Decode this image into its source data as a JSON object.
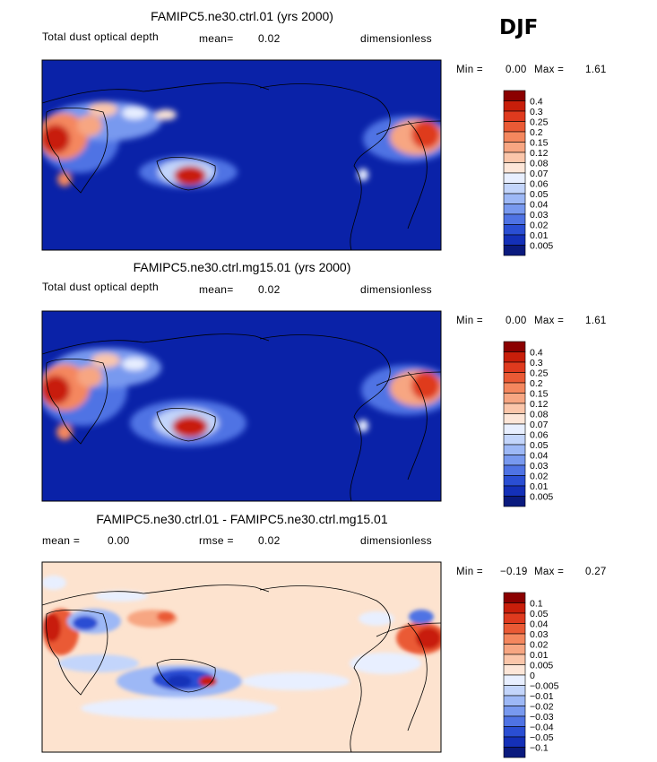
{
  "season": "DJF",
  "colors": {
    "ocean": "#0a22a8",
    "diff_background": "#fde3cf",
    "coast": "#000000"
  },
  "chart_data": [
    {
      "type": "heatmap",
      "title": "FAMIPC5.ne30.ctrl.01 (yrs 2000)",
      "variable": "Total dust optical depth",
      "mean_label": "mean=",
      "mean_value": "0.02",
      "units": "dimensionless",
      "min_label": "Min =",
      "min_value": "0.00",
      "max_label": "Max =",
      "max_value": "1.61",
      "colorbar": {
        "levels": [
          "0.4",
          "0.3",
          "0.25",
          "0.2",
          "0.15",
          "0.12",
          "0.08",
          "0.07",
          "0.06",
          "0.05",
          "0.04",
          "0.03",
          "0.02",
          "0.01",
          "0.005"
        ],
        "colors": [
          "#8b0000",
          "#c81e0a",
          "#df3a1e",
          "#ea5a35",
          "#f4875e",
          "#f7a682",
          "#fbc6aa",
          "#fde6d8",
          "#e8efff",
          "#c3d5fb",
          "#9db8f6",
          "#7899ef",
          "#4f73e4",
          "#2a4ed3",
          "#1430b8",
          "#0a1a7e"
        ]
      }
    },
    {
      "type": "heatmap",
      "title": "FAMIPC5.ne30.ctrl.mg15.01 (yrs 2000)",
      "variable": "Total dust optical depth",
      "mean_label": "mean=",
      "mean_value": "0.02",
      "units": "dimensionless",
      "min_label": "Min =",
      "min_value": "0.00",
      "max_label": "Max =",
      "max_value": "1.61",
      "colorbar": {
        "levels": [
          "0.4",
          "0.3",
          "0.25",
          "0.2",
          "0.15",
          "0.12",
          "0.08",
          "0.07",
          "0.06",
          "0.05",
          "0.04",
          "0.03",
          "0.02",
          "0.01",
          "0.005"
        ],
        "colors": [
          "#8b0000",
          "#c81e0a",
          "#df3a1e",
          "#ea5a35",
          "#f4875e",
          "#f7a682",
          "#fbc6aa",
          "#fde6d8",
          "#e8efff",
          "#c3d5fb",
          "#9db8f6",
          "#7899ef",
          "#4f73e4",
          "#2a4ed3",
          "#1430b8",
          "#0a1a7e"
        ]
      }
    },
    {
      "type": "heatmap",
      "title": "FAMIPC5.ne30.ctrl.01 - FAMIPC5.ne30.ctrl.mg15.01",
      "mean_label": "mean =",
      "mean_value": "0.00",
      "rmse_label": "rmse =",
      "rmse_value": "0.02",
      "units": "dimensionless",
      "min_label": "Min =",
      "min_value": "−0.19",
      "max_label": "Max =",
      "max_value": "0.27",
      "colorbar": {
        "levels": [
          "0.1",
          "0.05",
          "0.04",
          "0.03",
          "0.02",
          "0.01",
          "0.005",
          "0",
          "−0.005",
          "−0.01",
          "−0.02",
          "−0.03",
          "−0.04",
          "−0.05",
          "−0.1"
        ],
        "colors": [
          "#8b0000",
          "#c81e0a",
          "#df3a1e",
          "#ea5a35",
          "#f4875e",
          "#f7a682",
          "#fbc6aa",
          "#fde6d8",
          "#e8efff",
          "#c3d5fb",
          "#9db8f6",
          "#7899ef",
          "#4f73e4",
          "#2a4ed3",
          "#1430b8",
          "#0a1a7e"
        ]
      }
    }
  ]
}
